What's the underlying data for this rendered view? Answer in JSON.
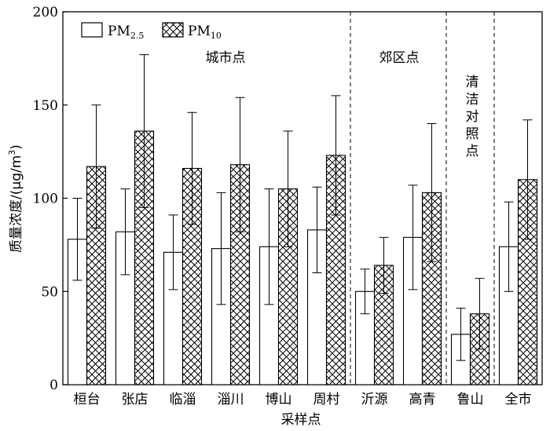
{
  "chart_data": {
    "type": "bar",
    "xlabel": "采样点",
    "ylabel": "质量浓度/(μg/m³)",
    "ylabel_parts": {
      "main": "质量浓度/(μg/m",
      "sup": "3",
      "tail": ")"
    },
    "ylim": [
      0,
      200
    ],
    "yticks": [
      "0",
      "50",
      "100",
      "150",
      "200"
    ],
    "categories": [
      "桓台",
      "张店",
      "临淄",
      "淄川",
      "博山",
      "周村",
      "沂源",
      "高青",
      "鲁山",
      "全市"
    ],
    "series": [
      {
        "name": "PM2.5",
        "name_parts": {
          "main": "PM",
          "sub": "2.5"
        },
        "pattern": "open",
        "values": [
          78,
          82,
          71,
          73,
          74,
          83,
          50,
          79,
          27,
          74
        ],
        "errors": [
          22,
          23,
          20,
          30,
          31,
          23,
          12,
          28,
          14,
          24
        ]
      },
      {
        "name": "PM10",
        "name_parts": {
          "main": "PM",
          "sub": "10"
        },
        "pattern": "crosshatch",
        "values": [
          117,
          136,
          116,
          118,
          105,
          123,
          64,
          103,
          38,
          110
        ],
        "errors": [
          33,
          41,
          30,
          36,
          31,
          32,
          15,
          37,
          19,
          32
        ]
      }
    ],
    "regions": [
      {
        "label": "城市点",
        "from": 0,
        "to": 5
      },
      {
        "label": "郊区点",
        "from": 6,
        "to": 7
      },
      {
        "label": "清洁对照点",
        "from": 8,
        "to": 8
      }
    ],
    "grid": false,
    "legend_position": "top-left"
  }
}
